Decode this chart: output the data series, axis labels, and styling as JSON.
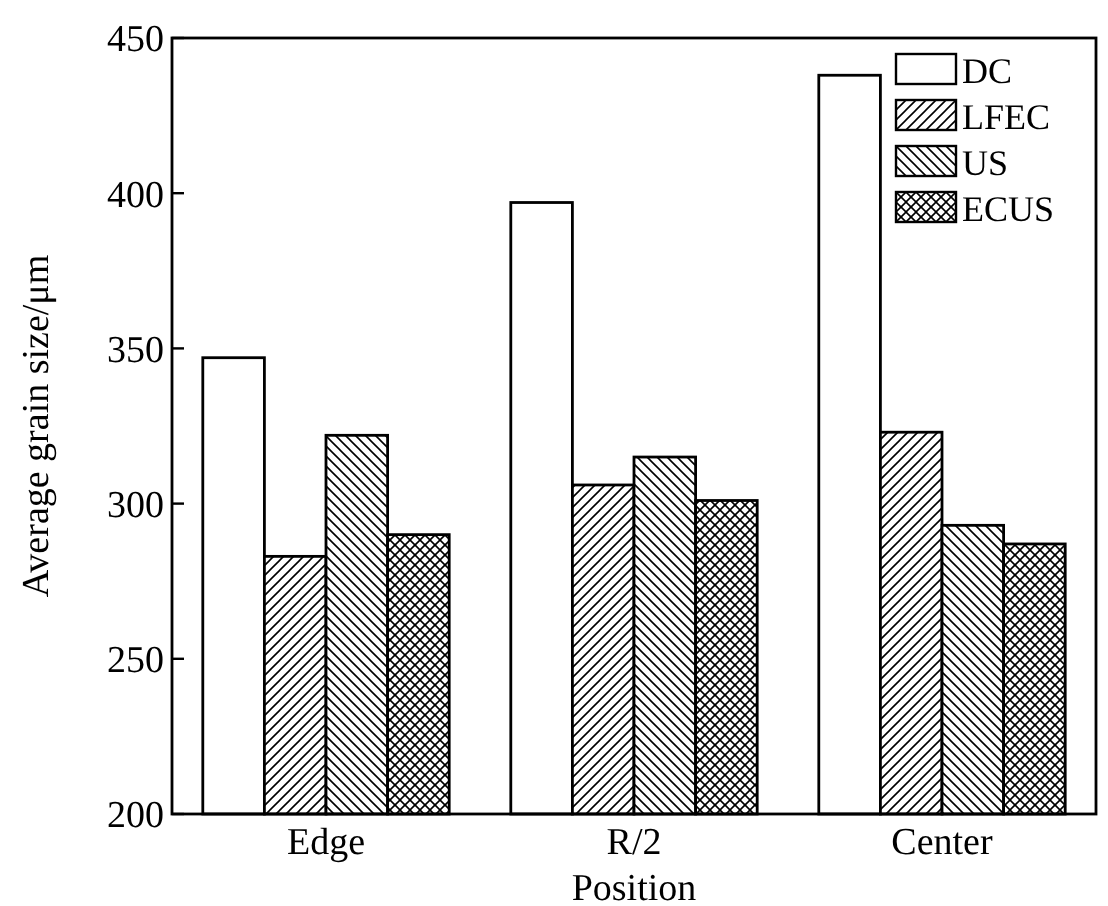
{
  "chart_data": {
    "type": "bar",
    "xlabel": "Position",
    "ylabel": "Average grain size/μm",
    "categories": [
      "Edge",
      "R/2",
      "Center"
    ],
    "series": [
      {
        "name": "DC",
        "color": "#ffffff",
        "values": [
          347,
          397,
          438
        ]
      },
      {
        "name": "LFEC",
        "color": "#000000",
        "values": [
          283,
          306,
          323
        ]
      },
      {
        "name": "US",
        "color": "#000000",
        "values": [
          322,
          315,
          293
        ]
      },
      {
        "name": "ECUS",
        "color": "#000000",
        "values": [
          290,
          301,
          287
        ]
      }
    ],
    "ylim": [
      200,
      450
    ],
    "yticks": [
      200,
      250,
      300,
      350,
      400,
      450
    ],
    "grid": false,
    "legend": "top right"
  }
}
